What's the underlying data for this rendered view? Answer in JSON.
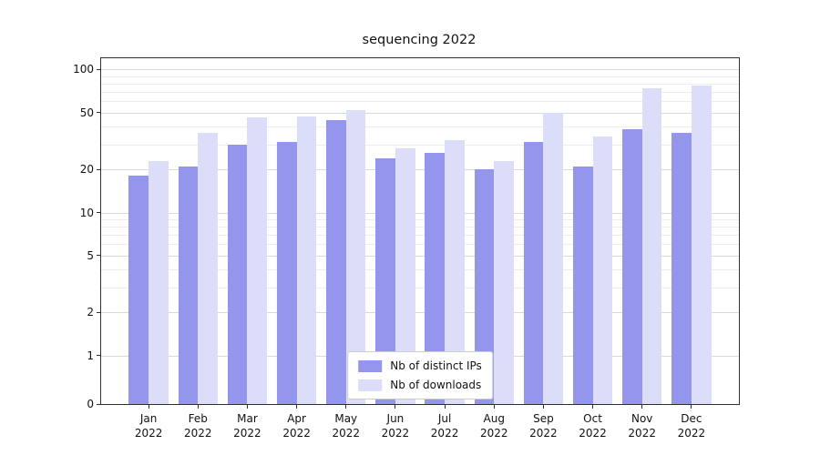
{
  "chart_data": {
    "type": "bar",
    "title": "sequencing 2022",
    "yscale": "symlog",
    "grid": true,
    "legend_position": "lower center",
    "months": [
      "Jan",
      "Feb",
      "Mar",
      "Apr",
      "May",
      "Jun",
      "Jul",
      "Aug",
      "Sep",
      "Oct",
      "Nov",
      "Dec"
    ],
    "year": "2022",
    "series": [
      {
        "name": "Nb of distinct IPs",
        "color": "#9496ed",
        "values": [
          18,
          21,
          30,
          31,
          44,
          24,
          26,
          20,
          31,
          21,
          38,
          36
        ]
      },
      {
        "name": "Nb of downloads",
        "color": "#dcddf9",
        "values": [
          23,
          36,
          46,
          47,
          52,
          28,
          32,
          23,
          50,
          34,
          74,
          77
        ]
      }
    ],
    "yticks": [
      0,
      1,
      2,
      5,
      10,
      20,
      50,
      100
    ],
    "minor_yticks": [
      3,
      4,
      6,
      7,
      8,
      9,
      30,
      40,
      60,
      70,
      80,
      90
    ],
    "ylim": [
      0,
      120
    ]
  },
  "colors": {
    "background": "#ffffff",
    "text": "#111111",
    "frame": "#2e2e2e",
    "grid_major": "#d8d8d8",
    "grid_minor": "#ededed",
    "legend_border": "#cccccc"
  }
}
